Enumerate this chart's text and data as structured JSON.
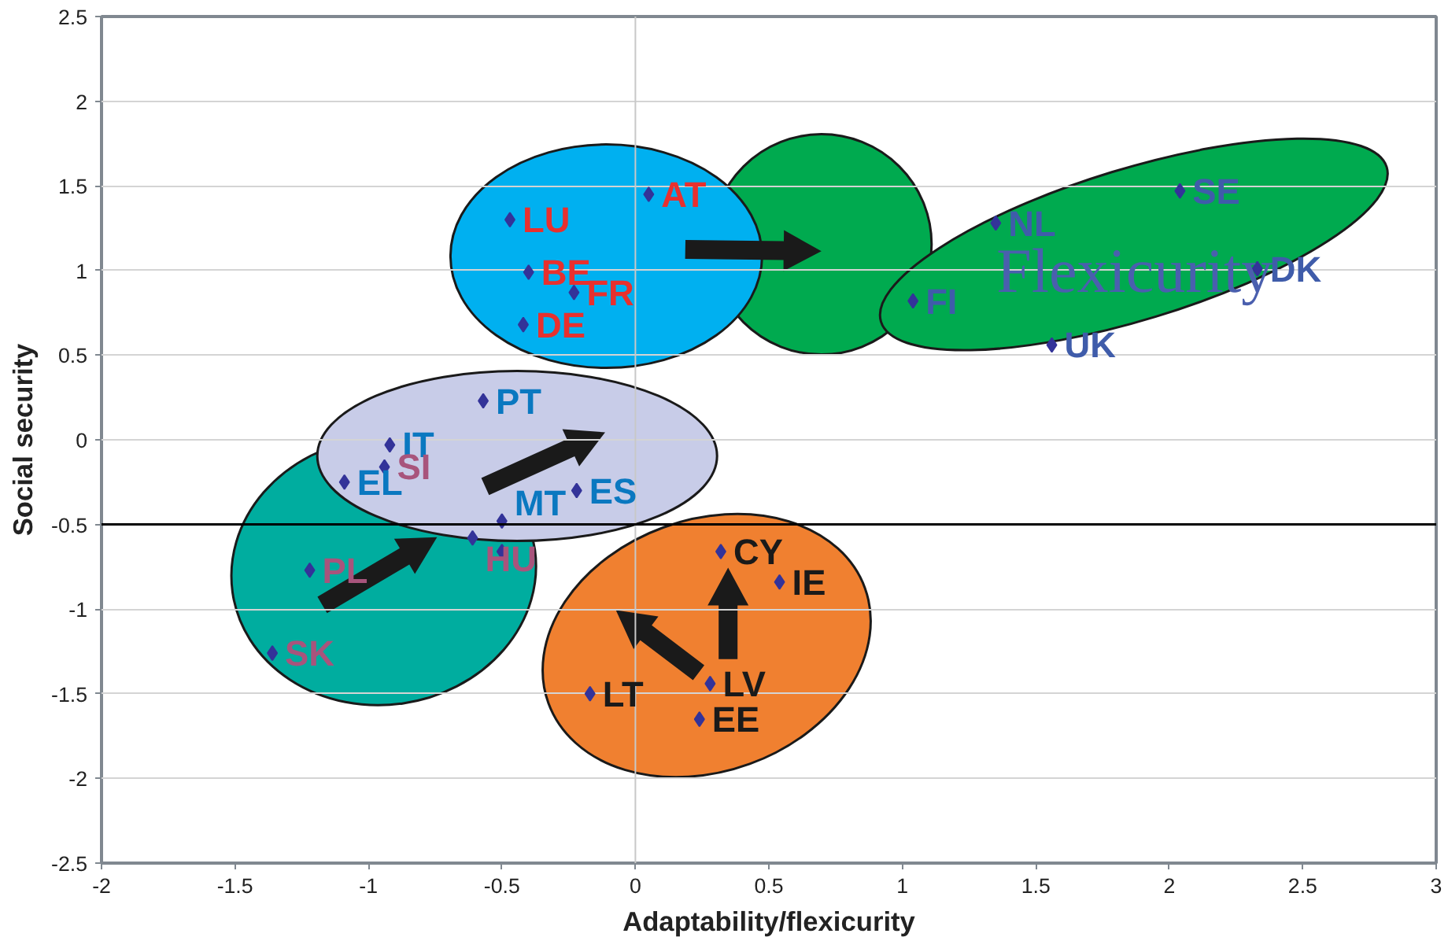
{
  "chart_data": {
    "type": "scatter",
    "xlabel": "Adaptability/flexicurity",
    "ylabel": "Social security",
    "xlim": [
      -2,
      3
    ],
    "ylim": [
      -2.5,
      2.5
    ],
    "xticks": [
      -2,
      -1.5,
      -1,
      -0.5,
      0,
      0.5,
      1,
      1.5,
      2,
      2.5,
      3
    ],
    "yticks": [
      -2.5,
      -2,
      -1.5,
      -1,
      -0.5,
      0,
      0.5,
      1,
      1.5,
      2,
      2.5
    ],
    "grid": "y",
    "marker": "diamond",
    "series": [
      {
        "color": "#333399",
        "x": [
          0.05,
          -0.47,
          -0.4,
          -0.23,
          -0.42
        ],
        "values": [
          1.45,
          1.3,
          0.99,
          0.87,
          0.68
        ],
        "value_labels": [
          "AT",
          "LU",
          "BE",
          "FR",
          "DE"
        ]
      },
      {
        "color": "#333399",
        "x": [
          2.04,
          1.35,
          2.33,
          1.04,
          1.56
        ],
        "values": [
          1.47,
          1.28,
          1.01,
          0.82,
          0.56
        ],
        "value_labels": [
          "SE",
          "NL",
          "DK",
          "FI",
          "UK"
        ]
      },
      {
        "color": "#333399",
        "x": [
          -0.57,
          -0.92,
          -1.09,
          -0.22,
          -0.5
        ],
        "values": [
          0.23,
          -0.03,
          -0.25,
          -0.3,
          -0.48
        ],
        "value_labels": [
          "PT",
          "IT",
          "EL",
          "ES",
          "MT"
        ]
      },
      {
        "color": "#333399",
        "x": [
          -0.94,
          -0.61,
          -0.5,
          -1.22,
          -1.36
        ],
        "values": [
          -0.16,
          -0.58,
          -0.66,
          -0.77,
          -1.26
        ],
        "value_labels": [
          "SI",
          "HU",
          null,
          "PL",
          "SK"
        ]
      },
      {
        "color": "#333399",
        "x": [
          0.32,
          0.54,
          0.28,
          -0.17,
          0.24
        ],
        "values": [
          -0.66,
          -0.84,
          -1.44,
          -1.5,
          -1.65
        ],
        "value_labels": [
          "CY",
          "IE",
          "LV",
          "LT",
          "EE"
        ]
      }
    ],
    "ref_lines": [
      {
        "axis": "y",
        "value": -0.5,
        "color": "#000000"
      }
    ],
    "annotations": [
      "Flexicurity"
    ]
  }
}
